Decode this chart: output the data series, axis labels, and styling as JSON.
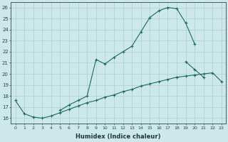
{
  "xlabel": "Humidex (Indice chaleur)",
  "background_color": "#cce8e8",
  "grid_color": "#aacfcf",
  "line_color": "#1a6b5a",
  "xlim": [
    -0.5,
    23.5
  ],
  "ylim": [
    15.5,
    26.5
  ],
  "yticks": [
    16,
    17,
    18,
    19,
    20,
    21,
    22,
    23,
    24,
    25,
    26
  ],
  "xticks": [
    0,
    1,
    2,
    3,
    4,
    5,
    6,
    7,
    8,
    9,
    10,
    11,
    12,
    13,
    14,
    15,
    16,
    17,
    18,
    19,
    20,
    21,
    22,
    23
  ],
  "series": [
    [
      17.6,
      16.4,
      16.1,
      16.0,
      16.2,
      16.5,
      16.8,
      17.1,
      17.4,
      17.6,
      17.9,
      18.1,
      18.4,
      18.6,
      18.9,
      19.1,
      19.3,
      19.5,
      19.7,
      19.8,
      19.9,
      20.0,
      20.1,
      19.3
    ],
    [
      null,
      null,
      null,
      null,
      null,
      16.7,
      17.2,
      17.6,
      18.0,
      21.3,
      20.9,
      21.5,
      22.0,
      22.5,
      23.8,
      25.1,
      25.7,
      26.0,
      25.9,
      24.6,
      22.7,
      null,
      null,
      null
    ],
    [
      null,
      null,
      null,
      null,
      null,
      null,
      null,
      null,
      null,
      null,
      null,
      null,
      null,
      null,
      null,
      null,
      null,
      null,
      null,
      21.1,
      20.4,
      19.7,
      null,
      null
    ]
  ]
}
